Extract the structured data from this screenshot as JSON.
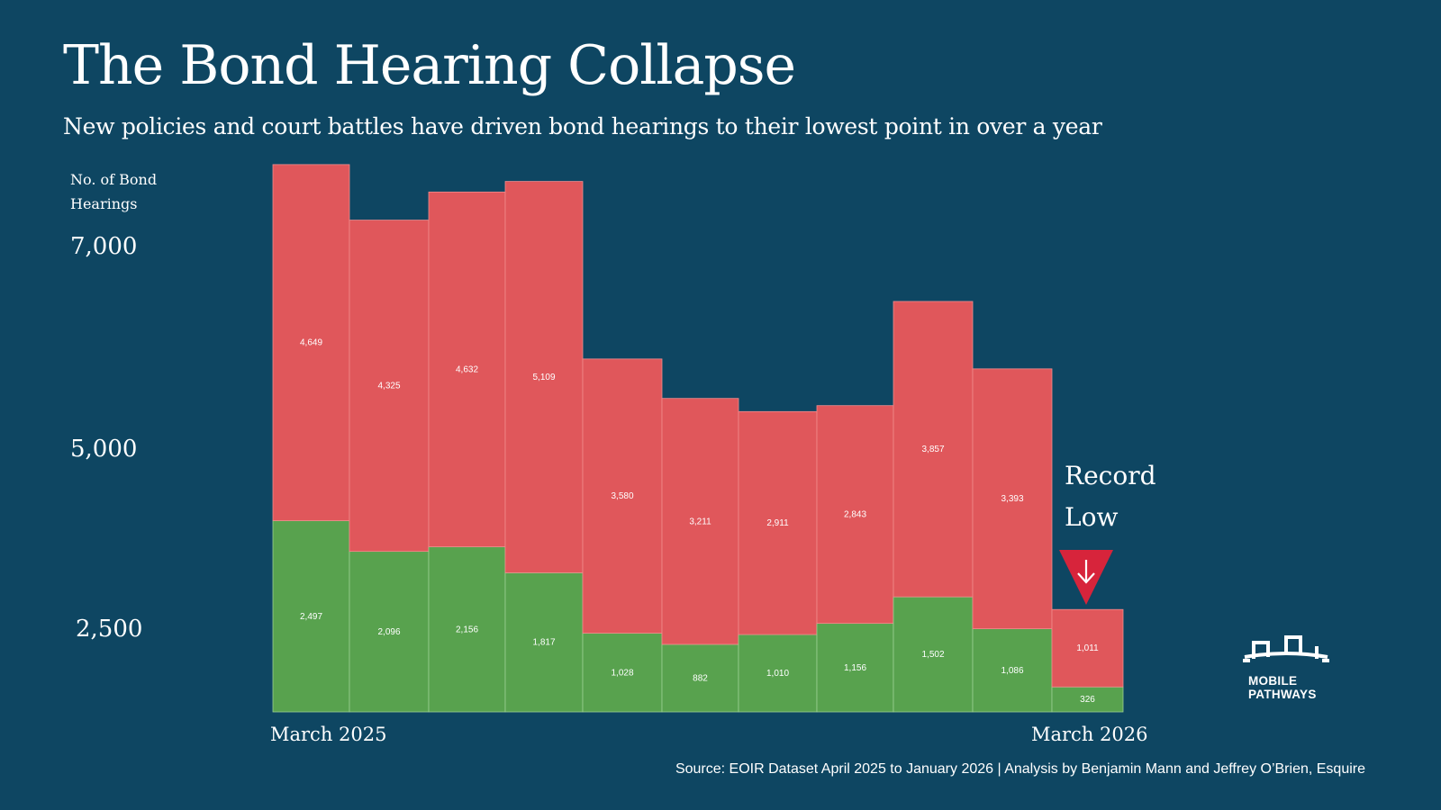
{
  "header": {
    "title": "The Bond Hearing Collapse",
    "subtitle": "New policies and court battles have driven bond hearings to their lowest point in over a year"
  },
  "annotation": {
    "line1": "Record",
    "line2": "Low",
    "icon": "down-arrow-triangle-icon"
  },
  "source": "Source: EOIR Dataset April 2025 to January 2026 | Analysis by Benjamin Mann and Jeffrey O’Brien, Esquire",
  "logo": {
    "line1": "MOBILE",
    "line2": "PATHWAYS",
    "icon": "bridge-icon"
  },
  "colors": {
    "background": "#0e4662",
    "granted": "#58a24e",
    "other": "#e0575b",
    "annotation_arrow": "#d7243b"
  },
  "chart_data": {
    "type": "bar",
    "stacked": true,
    "ylabel": "No. of Bond Hearings",
    "yticks": [
      "7,000",
      "5,000",
      "2,500"
    ],
    "xticks": [
      "March 2025",
      "March 2026"
    ],
    "series": [
      {
        "name": "lower (green)",
        "values": [
          2497,
          2096,
          2156,
          1817,
          1028,
          882,
          1010,
          1156,
          1502,
          1086,
          326
        ],
        "labels": [
          "2,497",
          "2,096",
          "2,156",
          "1,817",
          "1,028",
          "882",
          "1,010",
          "1,156",
          "1,502",
          "1,086",
          "326"
        ]
      },
      {
        "name": "upper (red)",
        "values": [
          4649,
          4325,
          4632,
          5109,
          3580,
          3211,
          2911,
          2843,
          3857,
          3393,
          1011
        ],
        "labels": [
          "4,649",
          "4,325",
          "4,632",
          "5,109",
          "3,580",
          "3,211",
          "2,911",
          "2,843",
          "3,857",
          "3,393",
          "1,011"
        ]
      }
    ]
  }
}
